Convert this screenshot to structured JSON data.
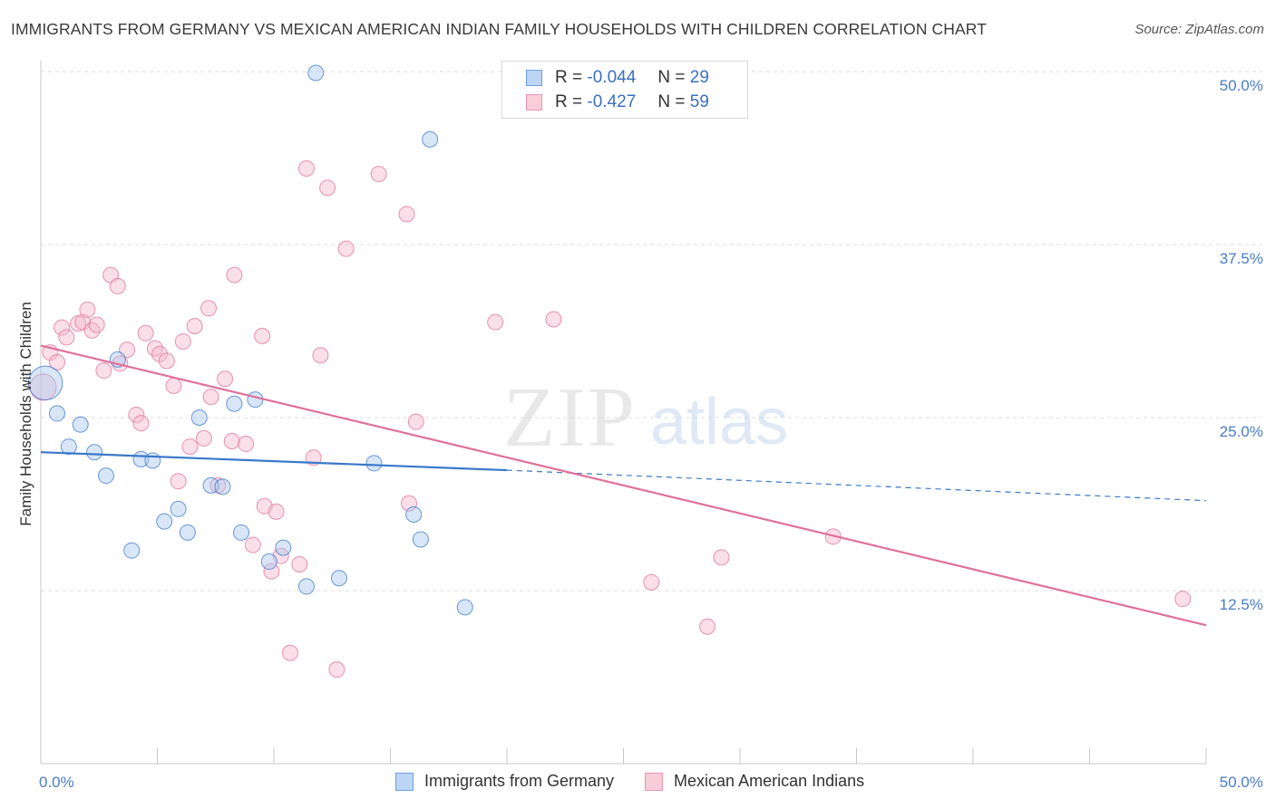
{
  "title": "IMMIGRANTS FROM GERMANY VS MEXICAN AMERICAN INDIAN FAMILY HOUSEHOLDS WITH CHILDREN CORRELATION CHART",
  "source": "Source: ZipAtlas.com",
  "watermark": {
    "zip": "ZIP",
    "atlas": "atlas"
  },
  "legend": {
    "rows": [
      {
        "r_label": "R =",
        "r_value": "-0.044",
        "n_label": "N =",
        "n_value": "29",
        "color": "#a8c8f0"
      },
      {
        "r_label": "R =",
        "r_value": "-0.427",
        "n_label": "N =",
        "n_value": "59",
        "color": "#f5b8cb"
      }
    ]
  },
  "colors": {
    "blue": "#3a78c9",
    "pink": "#e0709a",
    "tick": "#4a7cc9"
  },
  "chart_data": {
    "type": "scatter",
    "title": "IMMIGRANTS FROM GERMANY VS MEXICAN AMERICAN INDIAN FAMILY HOUSEHOLDS WITH CHILDREN CORRELATION CHART",
    "xlabel": "",
    "ylabel": "Family Households with Children",
    "xlim": [
      0,
      50
    ],
    "ylim": [
      0,
      50
    ],
    "x_tick_labels": [
      "0.0%",
      "50.0%"
    ],
    "y_ticks": [
      12.5,
      25.0,
      37.5,
      50.0
    ],
    "y_tick_labels": [
      "12.5%",
      "25.0%",
      "37.5%",
      "50.0%"
    ],
    "grid": true,
    "legend_position": "top-center",
    "series": [
      {
        "name": "Immigrants from Germany",
        "color": "#3a78c9",
        "fill": "#a8c8f0",
        "regression": {
          "x0": 0,
          "y0": 22.5,
          "x1": 20,
          "y1": 21.2,
          "x_dash_end": 50,
          "y_dash_end": 19.0
        },
        "points": [
          [
            0.2,
            27.5,
            2.2
          ],
          [
            0.7,
            25.3,
            1
          ],
          [
            1.2,
            22.9,
            1
          ],
          [
            1.7,
            24.5,
            1
          ],
          [
            2.3,
            22.5,
            1
          ],
          [
            2.8,
            20.8,
            1
          ],
          [
            3.3,
            29.2,
            1
          ],
          [
            3.9,
            15.4,
            1
          ],
          [
            4.3,
            22.0,
            1
          ],
          [
            4.8,
            21.9,
            1
          ],
          [
            5.3,
            17.5,
            1
          ],
          [
            5.9,
            18.4,
            1
          ],
          [
            6.3,
            16.7,
            1
          ],
          [
            6.8,
            25.0,
            1
          ],
          [
            7.3,
            20.1,
            1
          ],
          [
            7.8,
            20.0,
            1
          ],
          [
            8.3,
            26.0,
            1
          ],
          [
            8.6,
            16.7,
            1
          ],
          [
            9.2,
            26.3,
            1
          ],
          [
            9.8,
            14.6,
            1
          ],
          [
            10.4,
            15.6,
            1
          ],
          [
            11.4,
            12.8,
            1
          ],
          [
            11.8,
            49.9,
            1
          ],
          [
            12.8,
            13.4,
            1
          ],
          [
            14.3,
            21.7,
            1
          ],
          [
            16.0,
            18.0,
            1
          ],
          [
            16.3,
            16.2,
            1
          ],
          [
            16.7,
            45.1,
            1
          ],
          [
            18.2,
            11.3,
            1
          ]
        ]
      },
      {
        "name": "Mexican American Indians",
        "color": "#e0709a",
        "fill": "#f5b8cb",
        "regression": {
          "x0": 0,
          "y0": 30.2,
          "x1": 50,
          "y1": 10.0
        },
        "points": [
          [
            0.1,
            27.2,
            1.7
          ],
          [
            0.4,
            29.7,
            1
          ],
          [
            0.7,
            29.0,
            1
          ],
          [
            0.9,
            31.5,
            1
          ],
          [
            1.1,
            30.8,
            1
          ],
          [
            1.6,
            31.8,
            1
          ],
          [
            1.8,
            31.9,
            1
          ],
          [
            2.0,
            32.8,
            1
          ],
          [
            2.2,
            31.3,
            1
          ],
          [
            2.4,
            31.7,
            1
          ],
          [
            2.7,
            28.4,
            1
          ],
          [
            3.0,
            35.3,
            1
          ],
          [
            3.3,
            34.5,
            1
          ],
          [
            3.4,
            28.9,
            1
          ],
          [
            3.7,
            29.9,
            1
          ],
          [
            4.1,
            25.2,
            1
          ],
          [
            4.3,
            24.6,
            1
          ],
          [
            4.5,
            31.1,
            1
          ],
          [
            4.9,
            30.0,
            1
          ],
          [
            5.1,
            29.6,
            1
          ],
          [
            5.4,
            29.1,
            1
          ],
          [
            5.7,
            27.3,
            1
          ],
          [
            5.9,
            20.4,
            1
          ],
          [
            6.1,
            30.5,
            1
          ],
          [
            6.4,
            22.9,
            1
          ],
          [
            6.6,
            31.6,
            1
          ],
          [
            7.0,
            23.5,
            1
          ],
          [
            7.2,
            32.9,
            1
          ],
          [
            7.3,
            26.5,
            1
          ],
          [
            7.6,
            20.1,
            1
          ],
          [
            7.9,
            27.8,
            1
          ],
          [
            8.2,
            23.3,
            1
          ],
          [
            8.3,
            35.3,
            1
          ],
          [
            8.8,
            23.1,
            1
          ],
          [
            9.1,
            15.8,
            1
          ],
          [
            9.5,
            30.9,
            1
          ],
          [
            9.6,
            18.6,
            1
          ],
          [
            9.9,
            13.9,
            1
          ],
          [
            10.1,
            18.2,
            1
          ],
          [
            10.3,
            15.0,
            1
          ],
          [
            10.7,
            8.0,
            1
          ],
          [
            11.1,
            14.4,
            1
          ],
          [
            11.4,
            43.0,
            1
          ],
          [
            11.7,
            22.1,
            1
          ],
          [
            12.0,
            29.5,
            1
          ],
          [
            12.3,
            41.6,
            1
          ],
          [
            12.7,
            6.8,
            1
          ],
          [
            13.1,
            37.2,
            1
          ],
          [
            14.5,
            42.6,
            1
          ],
          [
            15.7,
            39.7,
            1
          ],
          [
            15.8,
            18.8,
            1
          ],
          [
            16.1,
            24.7,
            1
          ],
          [
            19.5,
            31.9,
            1
          ],
          [
            22.0,
            32.1,
            1
          ],
          [
            26.2,
            13.1,
            1
          ],
          [
            28.6,
            9.9,
            1
          ],
          [
            29.2,
            14.9,
            1
          ],
          [
            34.0,
            16.4,
            1
          ],
          [
            49.0,
            11.9,
            1
          ]
        ]
      }
    ]
  },
  "bottom_legend": [
    {
      "label": "Immigrants from Germany"
    },
    {
      "label": "Mexican American Indians"
    }
  ]
}
